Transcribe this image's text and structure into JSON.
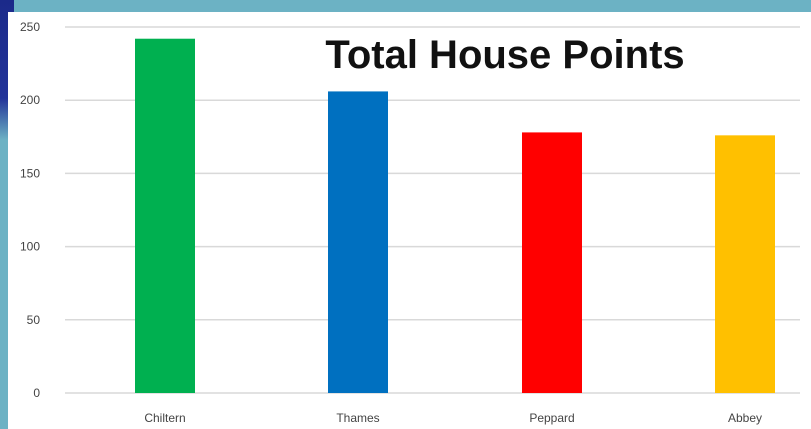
{
  "chart_data": {
    "type": "bar",
    "title": "Total House Points",
    "xlabel": "",
    "ylabel": "",
    "categories": [
      "Chiltern",
      "Thames",
      "Peppard",
      "Abbey"
    ],
    "values": [
      242,
      206,
      178,
      176
    ],
    "colors": [
      "#00b050",
      "#0070c0",
      "#ff0000",
      "#ffc000"
    ],
    "ylim": [
      0,
      250
    ],
    "yticks": [
      0,
      50,
      100,
      150,
      200,
      250
    ],
    "ytick_labels": [
      "0",
      "50",
      "100",
      "150",
      "200",
      "250"
    ],
    "grid": true,
    "legend": "none"
  }
}
